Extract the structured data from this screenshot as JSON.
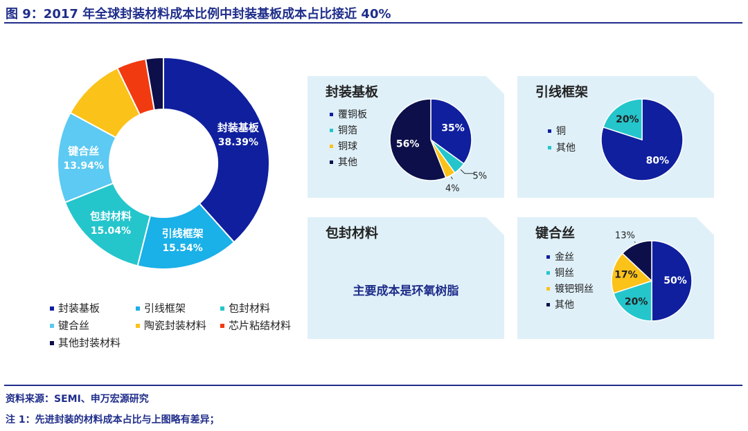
{
  "header": {
    "title": "图 9：2017 年全球封装材料成本比例中封装基板成本占比接近 40%"
  },
  "colors": {
    "navy": "#0f1f9e",
    "blue": "#1ab0e8",
    "teal": "#25c5cc",
    "lightblue": "#5ccaf2",
    "gold": "#fbc21a",
    "red": "#f23a11",
    "darknavy": "#0d0f4a"
  },
  "chart_data": [
    {
      "type": "pie",
      "title": "",
      "donut": true,
      "slices": [
        {
          "name": "封装基板",
          "value": 38.39,
          "label": "38.39%",
          "color": "#0f1f9e"
        },
        {
          "name": "引线框架",
          "value": 15.54,
          "label": "15.54%",
          "color": "#1ab0e8"
        },
        {
          "name": "包封材料",
          "value": 15.04,
          "label": "15.04%",
          "color": "#25c5cc"
        },
        {
          "name": "键合丝",
          "value": 13.94,
          "label": "13.94%",
          "color": "#5ccaf2"
        },
        {
          "name": "陶瓷封装材料",
          "value": 9.9,
          "label": "",
          "color": "#fbc21a"
        },
        {
          "name": "芯片粘结材料",
          "value": 4.5,
          "label": "",
          "color": "#f23a11"
        },
        {
          "name": "其他封装材料",
          "value": 2.69,
          "label": "",
          "color": "#0d0f4a"
        }
      ],
      "legend": [
        "封装基板",
        "引线框架",
        "包封材料",
        "键合丝",
        "陶瓷封装材料",
        "芯片粘结材料",
        "其他封装材料"
      ],
      "legend_position": "bottom"
    },
    {
      "type": "pie",
      "title": "封装基板",
      "slices": [
        {
          "name": "覆铜板",
          "value": 35,
          "label": "35%",
          "color": "#0f1f9e"
        },
        {
          "name": "铜箔",
          "value": 5,
          "label": "5%",
          "color": "#25c5cc"
        },
        {
          "name": "铜球",
          "value": 4,
          "label": "4%",
          "color": "#fbc21a"
        },
        {
          "name": "其他",
          "value": 56,
          "label": "56%",
          "color": "#0d0f4a"
        }
      ],
      "legend_position": "left"
    },
    {
      "type": "pie",
      "title": "引线框架",
      "slices": [
        {
          "name": "铜",
          "value": 80,
          "label": "80%",
          "color": "#0f1f9e"
        },
        {
          "name": "其他",
          "value": 20,
          "label": "20%",
          "color": "#25c5cc"
        }
      ],
      "legend_position": "left"
    },
    {
      "type": "pie",
      "title": "键合丝",
      "slices": [
        {
          "name": "金丝",
          "value": 50,
          "label": "50%",
          "color": "#0f1f9e"
        },
        {
          "name": "铜丝",
          "value": 20,
          "label": "20%",
          "color": "#25c5cc"
        },
        {
          "name": "镀钯铜丝",
          "value": 17,
          "label": "17%",
          "color": "#fbc21a"
        },
        {
          "name": "其他",
          "value": 13,
          "label": "13%",
          "color": "#0d0f4a"
        }
      ],
      "legend_position": "left"
    }
  ],
  "panel_packaging": {
    "title": "包封材料",
    "text": "主要成本是环氧树脂"
  },
  "footer": {
    "source": "资料来源：SEMI、申万宏源研究",
    "note": "注 1：先进封装的材料成本占比与上图略有差异；"
  }
}
